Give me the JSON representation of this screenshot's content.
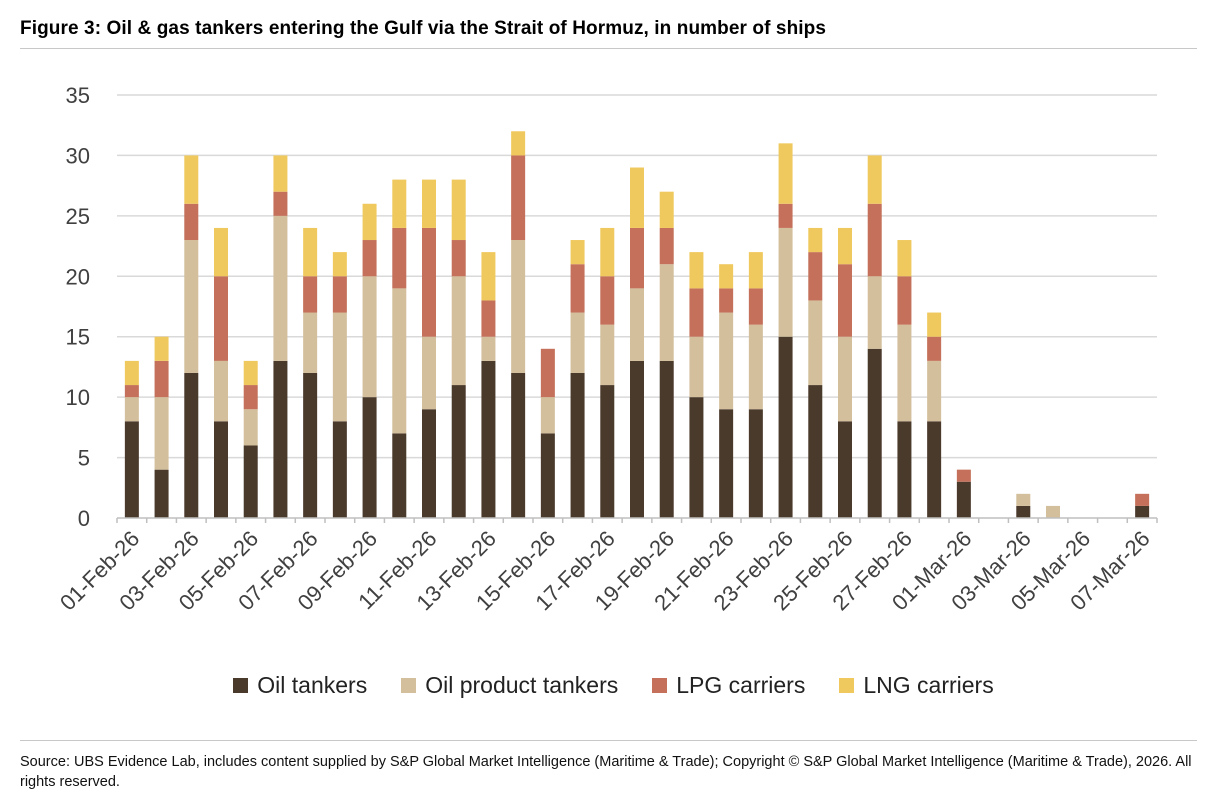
{
  "figure": {
    "title": "Figure 3: Oil & gas tankers entering the Gulf via the Strait of Hormuz, in number of ships",
    "source": "Source: UBS Evidence Lab, includes content supplied by S&P Global Market Intelligence (Maritime & Trade); Copyright © S&P Global Market Intelligence (Maritime & Trade), 2026. All rights reserved."
  },
  "colors": {
    "oil_tankers": "#4a3a2c",
    "oil_product_tankers": "#d3bf9c",
    "lpg_carriers": "#c4705a",
    "lng_carriers": "#f0c95e",
    "gridline": "#d9d9d9",
    "axis": "#bfbfbf",
    "tick_label": "#404040"
  },
  "chart_data": {
    "type": "bar",
    "stacked": true,
    "title": "",
    "xlabel": "",
    "ylabel": "",
    "ylim": [
      0,
      35
    ],
    "yticks": [
      0,
      5,
      10,
      15,
      20,
      25,
      30,
      35
    ],
    "grid": true,
    "legend_position": "bottom",
    "categories": [
      "01-Feb-26",
      "02-Feb-26",
      "03-Feb-26",
      "04-Feb-26",
      "05-Feb-26",
      "06-Feb-26",
      "07-Feb-26",
      "08-Feb-26",
      "09-Feb-26",
      "10-Feb-26",
      "11-Feb-26",
      "12-Feb-26",
      "13-Feb-26",
      "14-Feb-26",
      "15-Feb-26",
      "16-Feb-26",
      "17-Feb-26",
      "18-Feb-26",
      "19-Feb-26",
      "20-Feb-26",
      "21-Feb-26",
      "22-Feb-26",
      "23-Feb-26",
      "24-Feb-26",
      "25-Feb-26",
      "26-Feb-26",
      "27-Feb-26",
      "28-Feb-26",
      "01-Mar-26",
      "02-Mar-26",
      "03-Mar-26",
      "04-Mar-26",
      "05-Mar-26",
      "06-Mar-26",
      "07-Mar-26"
    ],
    "tick_labels": [
      "01-Feb-26",
      "03-Feb-26",
      "05-Feb-26",
      "07-Feb-26",
      "09-Feb-26",
      "11-Feb-26",
      "13-Feb-26",
      "15-Feb-26",
      "17-Feb-26",
      "19-Feb-26",
      "21-Feb-26",
      "23-Feb-26",
      "25-Feb-26",
      "27-Feb-26",
      "01-Mar-26",
      "03-Mar-26",
      "05-Mar-26",
      "07-Mar-26"
    ],
    "series": [
      {
        "name": "Oil tankers",
        "color_key": "oil_tankers",
        "values": [
          8,
          4,
          12,
          8,
          6,
          13,
          12,
          8,
          10,
          7,
          9,
          11,
          13,
          12,
          7,
          12,
          11,
          13,
          13,
          10,
          9,
          9,
          15,
          11,
          8,
          14,
          8,
          8,
          3,
          0,
          1,
          0,
          0,
          0,
          1
        ]
      },
      {
        "name": "Oil product tankers",
        "color_key": "oil_product_tankers",
        "values": [
          2,
          6,
          11,
          5,
          3,
          12,
          5,
          9,
          10,
          12,
          6,
          9,
          2,
          11,
          3,
          5,
          5,
          6,
          8,
          5,
          8,
          7,
          9,
          7,
          7,
          6,
          8,
          5,
          0,
          0,
          1,
          1,
          0,
          0,
          0
        ]
      },
      {
        "name": "LPG carriers",
        "color_key": "lpg_carriers",
        "values": [
          1,
          3,
          3,
          7,
          2,
          2,
          3,
          3,
          3,
          5,
          9,
          3,
          3,
          7,
          4,
          4,
          4,
          5,
          3,
          4,
          2,
          3,
          2,
          4,
          6,
          6,
          4,
          2,
          1,
          0,
          0,
          0,
          0,
          0,
          1
        ]
      },
      {
        "name": "LNG carriers",
        "color_key": "lng_carriers",
        "values": [
          2,
          2,
          4,
          4,
          2,
          3,
          4,
          2,
          3,
          4,
          4,
          5,
          4,
          2,
          0,
          2,
          4,
          5,
          3,
          3,
          2,
          3,
          5,
          2,
          3,
          4,
          3,
          2,
          0,
          0,
          0,
          0,
          0,
          0,
          0
        ]
      }
    ]
  }
}
